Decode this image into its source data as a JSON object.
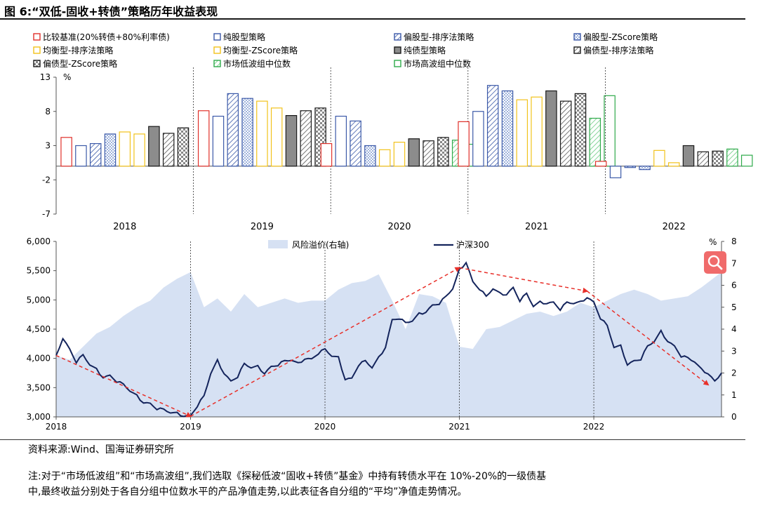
{
  "figure": {
    "title": "图 6:“双低-固收+转债”策略历年收益表现",
    "source": "资料来源:Wind、国海证券研究所",
    "note_line1": "注:对于“市场低波组”和“市场高波组”,我们选取《探秘低波“固收+转债”基金》中持有转债水平在 10%-20%的一级债基",
    "note_line2": "中,最终收益分别处于各自分组中位数水平的产品净值走势,以此表征各自分组的“平均”净值走势情况。"
  },
  "chart_data": [
    {
      "type": "bar",
      "title": "",
      "ylabel": "%",
      "ylim": [
        -7,
        13
      ],
      "yticks": [
        "13",
        "8",
        "3",
        "-2",
        "-7"
      ],
      "categories": [
        "2018",
        "2019",
        "2020",
        "2021",
        "2022"
      ],
      "series": [
        {
          "name": "比较基准(20%转债+80%利率债)",
          "color": "#e0302a",
          "fill": "none",
          "values": [
            4.2,
            8.1,
            3.3,
            6.5,
            0.7
          ]
        },
        {
          "name": "纯股型策略",
          "color": "#3b59a8",
          "fill": "none",
          "values": [
            3.0,
            7.3,
            7.3,
            8.0,
            -1.7
          ]
        },
        {
          "name": "偏股型-排序法策略",
          "color": "#3b59a8",
          "fill": "hatch",
          "values": [
            3.3,
            10.6,
            6.6,
            11.8,
            -0.2
          ]
        },
        {
          "name": "偏股型-ZScore策略",
          "color": "#3b59a8",
          "fill": "dots",
          "values": [
            4.7,
            9.9,
            3.0,
            11.0,
            -0.5
          ]
        },
        {
          "name": "均衡型-排序法策略",
          "color": "#f2c21b",
          "fill": "none",
          "values": [
            5.0,
            9.5,
            2.4,
            9.7,
            2.3
          ]
        },
        {
          "name": "均衡型-ZScore策略",
          "color": "#f2c21b",
          "fill": "none",
          "values": [
            4.7,
            8.5,
            3.5,
            10.1,
            0.5
          ]
        },
        {
          "name": "纯债型策略",
          "color": "#1a1a1a",
          "fill": "gray",
          "values": [
            5.8,
            7.4,
            4.0,
            11.0,
            3.0
          ]
        },
        {
          "name": "偏债型-排序法策略",
          "color": "#1a1a1a",
          "fill": "hatch",
          "values": [
            4.8,
            8.1,
            3.7,
            9.5,
            2.1
          ]
        },
        {
          "name": "偏债型-ZScore策略",
          "color": "#1a1a1a",
          "fill": "checker",
          "values": [
            5.6,
            8.5,
            4.2,
            10.6,
            2.2
          ]
        },
        {
          "name": "市场低波组中位数",
          "color": "#2eaa4a",
          "fill": "hatch",
          "values": [
            null,
            null,
            3.8,
            7.0,
            2.5
          ]
        },
        {
          "name": "市场高波组中位数",
          "color": "#2eaa4a",
          "fill": "none",
          "values": [
            null,
            null,
            3.2,
            10.3,
            1.6
          ]
        }
      ],
      "legend_position": "top"
    },
    {
      "type": "line",
      "title": "",
      "x_ticks": [
        "2018",
        "2019",
        "2020",
        "2021",
        "2022"
      ],
      "ylim_left": [
        3000,
        6000
      ],
      "yticks_left": [
        "3,000",
        "3,500",
        "4,000",
        "4,500",
        "5,000",
        "5,500",
        "6,000"
      ],
      "ylim_right": [
        0,
        8
      ],
      "yticks_right": [
        "0",
        "1",
        "2",
        "3",
        "4",
        "5",
        "6",
        "7",
        "8"
      ],
      "right_unit": "%",
      "series": [
        {
          "name": "风险溢价(右轴)",
          "axis": "right",
          "kind": "area",
          "color": "#d6e1f3",
          "x": [
            2018.0,
            2018.1,
            2018.2,
            2018.3,
            2018.4,
            2018.5,
            2018.6,
            2018.7,
            2018.8,
            2018.9,
            2019.0,
            2019.1,
            2019.2,
            2019.3,
            2019.4,
            2019.5,
            2019.6,
            2019.7,
            2019.8,
            2019.9,
            2020.0,
            2020.1,
            2020.2,
            2020.3,
            2020.4,
            2020.5,
            2020.6,
            2020.7,
            2020.8,
            2020.9,
            2021.0,
            2021.1,
            2021.2,
            2021.3,
            2021.4,
            2021.5,
            2021.6,
            2021.7,
            2021.8,
            2021.9,
            2022.0,
            2022.1,
            2022.2,
            2022.3,
            2022.4,
            2022.5,
            2022.6,
            2022.7,
            2022.8,
            2022.95
          ],
          "values": [
            2.8,
            2.6,
            3.2,
            3.8,
            4.1,
            4.6,
            5.0,
            5.3,
            5.9,
            6.3,
            6.6,
            5.0,
            5.4,
            4.8,
            5.6,
            5.0,
            5.2,
            5.4,
            5.2,
            5.3,
            5.3,
            5.8,
            6.1,
            6.2,
            6.5,
            5.3,
            4.0,
            5.6,
            5.5,
            5.2,
            3.2,
            3.1,
            4.0,
            4.1,
            4.4,
            4.7,
            4.8,
            4.6,
            4.8,
            5.2,
            5.0,
            5.3,
            5.6,
            5.8,
            5.6,
            5.3,
            5.4,
            5.5,
            5.9,
            6.6
          ]
        },
        {
          "name": "沪深300",
          "axis": "left",
          "kind": "line",
          "color": "#14245c",
          "x": [
            2018.0,
            2018.05,
            2018.1,
            2018.15,
            2018.2,
            2018.25,
            2018.3,
            2018.35,
            2018.4,
            2018.45,
            2018.5,
            2018.55,
            2018.6,
            2018.65,
            2018.7,
            2018.75,
            2018.8,
            2018.85,
            2018.9,
            2018.95,
            2019.0,
            2019.05,
            2019.1,
            2019.15,
            2019.2,
            2019.25,
            2019.3,
            2019.35,
            2019.4,
            2019.45,
            2019.5,
            2019.55,
            2019.6,
            2019.65,
            2019.7,
            2019.75,
            2019.8,
            2019.85,
            2019.9,
            2019.95,
            2020.0,
            2020.05,
            2020.1,
            2020.15,
            2020.2,
            2020.25,
            2020.3,
            2020.35,
            2020.4,
            2020.45,
            2020.5,
            2020.55,
            2020.6,
            2020.65,
            2020.7,
            2020.75,
            2020.8,
            2020.85,
            2020.9,
            2020.95,
            2021.0,
            2021.05,
            2021.1,
            2021.15,
            2021.2,
            2021.25,
            2021.3,
            2021.35,
            2021.4,
            2021.45,
            2021.5,
            2021.55,
            2021.6,
            2021.65,
            2021.7,
            2021.75,
            2021.8,
            2021.85,
            2021.9,
            2021.95,
            2022.0,
            2022.05,
            2022.1,
            2022.15,
            2022.2,
            2022.25,
            2022.3,
            2022.35,
            2022.4,
            2022.45,
            2022.5,
            2022.55,
            2022.6,
            2022.65,
            2022.7,
            2022.75,
            2022.8,
            2022.85,
            2022.9,
            2022.95
          ],
          "values": [
            4050,
            4350,
            4150,
            3950,
            4050,
            3900,
            3800,
            3680,
            3700,
            3620,
            3550,
            3450,
            3350,
            3250,
            3220,
            3150,
            3120,
            3080,
            3050,
            3020,
            3010,
            3200,
            3350,
            3750,
            3950,
            3750,
            3600,
            3700,
            3900,
            3850,
            3850,
            3750,
            3850,
            3900,
            3950,
            3980,
            3900,
            4000,
            3980,
            4100,
            4150,
            4050,
            4000,
            3650,
            3650,
            3900,
            3950,
            3850,
            4000,
            4200,
            4650,
            4700,
            4600,
            4650,
            4750,
            4800,
            4900,
            4950,
            5050,
            5200,
            5500,
            5650,
            5300,
            5200,
            5050,
            5200,
            5100,
            5100,
            5200,
            5000,
            5100,
            4900,
            4950,
            4950,
            4950,
            4850,
            4950,
            4950,
            4950,
            5050,
            4950,
            4700,
            4550,
            4200,
            4200,
            3900,
            3950,
            4000,
            4200,
            4300,
            4450,
            4300,
            4200,
            4050,
            4000,
            3950,
            3800,
            3750,
            3600,
            3750
          ]
        },
        {
          "name": "趋势线",
          "axis": "left",
          "kind": "dashed-arrow",
          "color": "#e8302a",
          "x": [
            2018.0,
            2019.0,
            2021.0,
            2021.95,
            2022.85
          ],
          "values": [
            4050,
            3010,
            5550,
            5150,
            3550
          ]
        }
      ],
      "legend": [
        "风险溢价(右轴)",
        "沪深300"
      ],
      "legend_position": "top-center"
    }
  ],
  "ui": {
    "magnifier_label": "search-icon"
  }
}
